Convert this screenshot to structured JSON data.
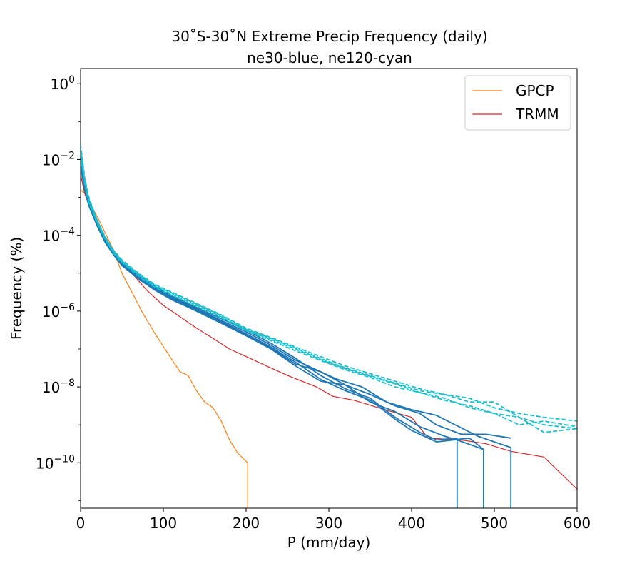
{
  "chart_data": {
    "type": "line",
    "title": "30˚S-30˚N Extreme Precip Frequency (daily)",
    "subtitle": "ne30-blue, ne120-cyan",
    "xlabel": "P (mm/day)",
    "ylabel": "Frequency (%)",
    "xlim": [
      0,
      600
    ],
    "ylim_log10": [
      -11.2,
      0.4
    ],
    "yscale": "log",
    "x_ticks": [
      "0",
      "100",
      "200",
      "300",
      "400",
      "500",
      "600"
    ],
    "y_ticks": [
      {
        "base": "10",
        "exp": "0",
        "log10": 0
      },
      {
        "base": "10",
        "exp": "−2",
        "log10": -2
      },
      {
        "base": "10",
        "exp": "−4",
        "log10": -4
      },
      {
        "base": "10",
        "exp": "−6",
        "log10": -6
      },
      {
        "base": "10",
        "exp": "−8",
        "log10": -8
      },
      {
        "base": "10",
        "exp": "−10",
        "log10": -10
      }
    ],
    "legend": {
      "placement": "top-right",
      "entries": [
        "GPCP",
        "TRMM"
      ]
    },
    "colors": {
      "gpcp": "#ff7f0e",
      "trmm": "#d62728",
      "ne30": "#1f77b4",
      "ne120": "#17becf"
    },
    "series": [
      {
        "name": "GPCP",
        "group": "gpcp",
        "style": "solid",
        "x": [
          0,
          5,
          12,
          20,
          30,
          40,
          50,
          62,
          75,
          90,
          105,
          120,
          130,
          140,
          150,
          160,
          170,
          180,
          190,
          202,
          202
        ],
        "log10y": [
          -2.8,
          -2.9,
          -3.2,
          -3.5,
          -3.95,
          -4.4,
          -5.0,
          -5.5,
          -6.05,
          -6.6,
          -7.1,
          -7.6,
          -7.7,
          -8.1,
          -8.4,
          -8.55,
          -8.9,
          -9.4,
          -9.75,
          -10.0,
          -11.2
        ]
      },
      {
        "name": "TRMM",
        "group": "trmm",
        "style": "solid",
        "x": [
          0,
          5,
          15,
          30,
          40,
          60,
          80,
          100,
          120,
          140,
          160,
          180,
          200,
          225,
          250,
          285,
          305,
          330,
          360,
          400,
          420,
          460,
          490,
          520,
          560,
          600
        ],
        "log10y": [
          -2.4,
          -2.9,
          -3.5,
          -4.15,
          -4.4,
          -4.95,
          -5.45,
          -5.85,
          -6.15,
          -6.45,
          -6.72,
          -7.0,
          -7.2,
          -7.45,
          -7.7,
          -8.0,
          -8.25,
          -8.35,
          -8.55,
          -8.8,
          -9.35,
          -9.4,
          -9.5,
          -9.7,
          -9.85,
          -10.7
        ]
      },
      {
        "name": "ne30-1",
        "group": "ne30",
        "style": "solid",
        "x": [
          0,
          5,
          10,
          20,
          30,
          40,
          50,
          70,
          90,
          110,
          140,
          170,
          200,
          230,
          260,
          290,
          320,
          350,
          380,
          410,
          430,
          455,
          455
        ],
        "log10y": [
          -1.8,
          -2.6,
          -3.05,
          -3.6,
          -4.1,
          -4.45,
          -4.7,
          -5.05,
          -5.35,
          -5.6,
          -5.9,
          -6.2,
          -6.5,
          -6.85,
          -7.25,
          -7.7,
          -8.05,
          -8.3,
          -8.8,
          -9.2,
          -9.4,
          -9.35,
          -11.2
        ]
      },
      {
        "name": "ne30-2",
        "group": "ne30",
        "style": "solid",
        "x": [
          0,
          5,
          10,
          20,
          30,
          40,
          50,
          70,
          90,
          110,
          140,
          170,
          200,
          230,
          260,
          290,
          320,
          350,
          380,
          410,
          440,
          455,
          487,
          487
        ],
        "log10y": [
          -1.9,
          -2.65,
          -3.1,
          -3.65,
          -4.1,
          -4.45,
          -4.72,
          -5.08,
          -5.37,
          -5.62,
          -5.93,
          -6.25,
          -6.55,
          -6.9,
          -7.3,
          -7.6,
          -7.95,
          -8.4,
          -8.65,
          -9.05,
          -9.3,
          -9.4,
          -9.65,
          -11.2
        ]
      },
      {
        "name": "ne30-3",
        "group": "ne30",
        "style": "solid",
        "x": [
          0,
          5,
          10,
          20,
          30,
          40,
          50,
          70,
          90,
          110,
          140,
          170,
          200,
          230,
          260,
          290,
          320,
          350,
          380,
          400,
          430,
          470,
          487
        ],
        "log10y": [
          -2.0,
          -2.7,
          -3.15,
          -3.7,
          -4.15,
          -4.48,
          -4.75,
          -5.1,
          -5.4,
          -5.65,
          -5.95,
          -6.28,
          -6.6,
          -6.95,
          -7.35,
          -7.8,
          -8.1,
          -8.35,
          -8.85,
          -9.15,
          -9.45,
          -9.35,
          -9.65
        ]
      },
      {
        "name": "ne30-4",
        "group": "ne30",
        "style": "solid",
        "x": [
          0,
          5,
          10,
          20,
          30,
          40,
          50,
          70,
          90,
          110,
          140,
          170,
          200,
          230,
          260,
          290,
          310,
          340,
          370,
          400,
          430,
          480,
          520,
          520
        ],
        "log10y": [
          -2.1,
          -2.75,
          -3.2,
          -3.72,
          -4.18,
          -4.5,
          -4.78,
          -5.12,
          -5.42,
          -5.68,
          -5.98,
          -6.3,
          -6.62,
          -6.98,
          -7.4,
          -7.6,
          -7.8,
          -8.0,
          -8.4,
          -8.6,
          -8.75,
          -9.3,
          -9.6,
          -11.2
        ]
      },
      {
        "name": "ne30-5",
        "group": "ne30",
        "style": "solid",
        "x": [
          0,
          5,
          10,
          20,
          30,
          40,
          50,
          70,
          90,
          110,
          140,
          170,
          200,
          230,
          260,
          290,
          320,
          350,
          380,
          410,
          430,
          460,
          490,
          520
        ],
        "log10y": [
          -2.2,
          -2.8,
          -3.22,
          -3.75,
          -4.2,
          -4.52,
          -4.8,
          -5.15,
          -5.45,
          -5.7,
          -6.0,
          -6.32,
          -6.65,
          -7.0,
          -7.45,
          -7.85,
          -7.95,
          -8.2,
          -8.5,
          -8.7,
          -9.0,
          -9.25,
          -9.25,
          -9.35
        ]
      },
      {
        "name": "ne120-1",
        "group": "ne120",
        "style": "dashed",
        "x": [
          0,
          5,
          10,
          20,
          30,
          40,
          50,
          70,
          90,
          110,
          140,
          170,
          200,
          230,
          260,
          290,
          320,
          350,
          380,
          410,
          440,
          470,
          500,
          530,
          560,
          600
        ],
        "log10y": [
          -1.6,
          -2.5,
          -3.0,
          -3.6,
          -4.05,
          -4.4,
          -4.65,
          -5.0,
          -5.3,
          -5.5,
          -5.8,
          -6.1,
          -6.45,
          -6.7,
          -6.95,
          -7.2,
          -7.45,
          -7.65,
          -7.85,
          -8.05,
          -8.2,
          -8.3,
          -8.55,
          -8.7,
          -8.8,
          -8.9
        ]
      },
      {
        "name": "ne120-2",
        "group": "ne120",
        "style": "dashed",
        "x": [
          0,
          5,
          10,
          20,
          30,
          40,
          50,
          70,
          90,
          110,
          140,
          170,
          200,
          230,
          260,
          290,
          320,
          350,
          380,
          410,
          440,
          470,
          500,
          530,
          560,
          600
        ],
        "log10y": [
          -1.7,
          -2.55,
          -3.05,
          -3.62,
          -4.08,
          -4.42,
          -4.68,
          -5.02,
          -5.32,
          -5.52,
          -5.82,
          -6.12,
          -6.48,
          -6.72,
          -6.98,
          -7.25,
          -7.5,
          -7.7,
          -7.9,
          -8.1,
          -8.2,
          -8.4,
          -8.4,
          -8.8,
          -9.0,
          -9.1
        ]
      },
      {
        "name": "ne120-3",
        "group": "ne120",
        "style": "dashed",
        "x": [
          0,
          5,
          10,
          20,
          30,
          40,
          50,
          70,
          90,
          110,
          140,
          170,
          200,
          230,
          260,
          290,
          320,
          350,
          380,
          410,
          440,
          470,
          500,
          530,
          560,
          600
        ],
        "log10y": [
          -1.8,
          -2.6,
          -3.1,
          -3.65,
          -4.1,
          -4.45,
          -4.7,
          -5.05,
          -5.35,
          -5.55,
          -5.85,
          -6.15,
          -6.5,
          -6.75,
          -7.0,
          -7.28,
          -7.52,
          -7.72,
          -7.92,
          -8.15,
          -8.3,
          -8.55,
          -8.7,
          -9.0,
          -8.9,
          -9.05
        ]
      },
      {
        "name": "ne120-4",
        "group": "ne120",
        "style": "dashed",
        "x": [
          0,
          5,
          10,
          20,
          30,
          40,
          50,
          70,
          90,
          110,
          140,
          170,
          200,
          230,
          260,
          290,
          320,
          350,
          380,
          410,
          440,
          470,
          500,
          530,
          560,
          600
        ],
        "log10y": [
          -1.9,
          -2.65,
          -3.15,
          -3.68,
          -4.12,
          -4.48,
          -4.72,
          -5.08,
          -5.38,
          -5.58,
          -5.88,
          -6.18,
          -6.52,
          -6.78,
          -7.05,
          -7.3,
          -7.55,
          -7.75,
          -8.0,
          -8.15,
          -8.35,
          -8.5,
          -8.7,
          -8.8,
          -9.2,
          -9.1
        ]
      }
    ]
  }
}
